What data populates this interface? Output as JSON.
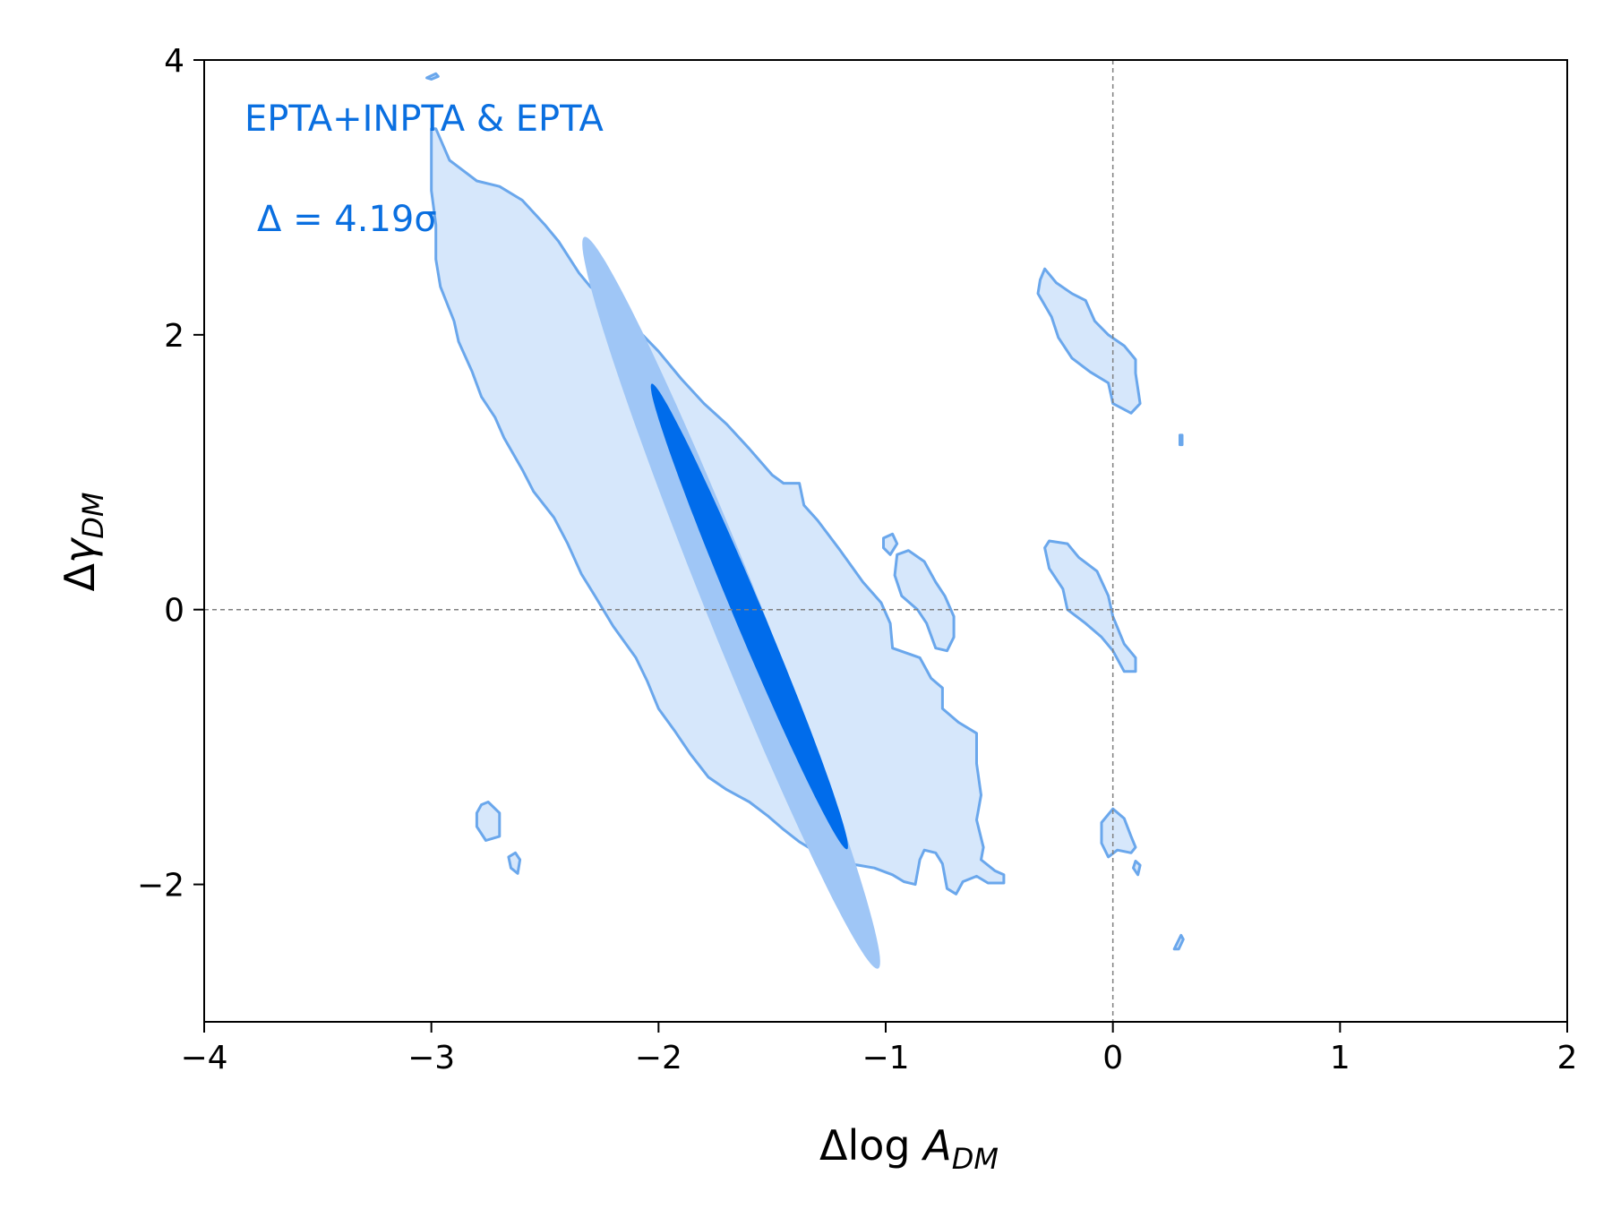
{
  "chart_data": {
    "type": "contour",
    "title": "",
    "xlabel": "Δlog A_DM",
    "ylabel": "Δγ_DM",
    "xlim": [
      -4,
      2
    ],
    "ylim": [
      -3,
      4
    ],
    "xticks": [
      -4,
      -3,
      -2,
      -1,
      0,
      1,
      2
    ],
    "yticks": [
      -2,
      0,
      2,
      4
    ],
    "xtick_labels": [
      "−4",
      "−3",
      "−2",
      "−1",
      "0",
      "1",
      "2"
    ],
    "ytick_labels": [
      "−2",
      "0",
      "2",
      "4"
    ],
    "reference_lines": {
      "x": 0,
      "y": 0,
      "style": "dashed",
      "color": "#808080"
    },
    "colors": {
      "level_outer": "#d6e7fb",
      "level_mid": "#9fc6f6",
      "level_inner": "#006ceb",
      "outline": "#6aa7ec",
      "annotation": "#0a6fe0"
    },
    "annotations": {
      "label": "EPTA+INPTA & EPTA",
      "sigma": "Δ = 4.19σ"
    },
    "regions": {
      "inner": {
        "center": [
          -1.6,
          -0.05
        ],
        "semi_major": 0.95,
        "semi_minor": 0.16,
        "angle_deg": -63
      },
      "middle": {
        "center": [
          -1.68,
          0.05
        ],
        "semi_major": 1.48,
        "semi_minor": 0.3,
        "angle_deg": -64
      },
      "outer_main": [
        [
          -2.98,
          3.5
        ],
        [
          -2.92,
          3.27
        ],
        [
          -2.8,
          3.12
        ],
        [
          -2.7,
          3.08
        ],
        [
          -2.6,
          2.98
        ],
        [
          -2.5,
          2.8
        ],
        [
          -2.44,
          2.68
        ],
        [
          -2.35,
          2.45
        ],
        [
          -2.3,
          2.35
        ],
        [
          -2.22,
          2.25
        ],
        [
          -2.1,
          2.05
        ],
        [
          -2.0,
          1.88
        ],
        [
          -1.9,
          1.68
        ],
        [
          -1.8,
          1.5
        ],
        [
          -1.7,
          1.35
        ],
        [
          -1.6,
          1.17
        ],
        [
          -1.5,
          0.98
        ],
        [
          -1.45,
          0.92
        ],
        [
          -1.38,
          0.92
        ],
        [
          -1.36,
          0.76
        ],
        [
          -1.3,
          0.65
        ],
        [
          -1.2,
          0.43
        ],
        [
          -1.1,
          0.2
        ],
        [
          -1.02,
          0.05
        ],
        [
          -0.98,
          -0.1
        ],
        [
          -0.97,
          -0.28
        ],
        [
          -0.85,
          -0.35
        ],
        [
          -0.8,
          -0.5
        ],
        [
          -0.75,
          -0.57
        ],
        [
          -0.75,
          -0.72
        ],
        [
          -0.68,
          -0.82
        ],
        [
          -0.6,
          -0.9
        ],
        [
          -0.6,
          -1.12
        ],
        [
          -0.58,
          -1.35
        ],
        [
          -0.6,
          -1.53
        ],
        [
          -0.57,
          -1.73
        ],
        [
          -0.58,
          -1.82
        ],
        [
          -0.52,
          -1.9
        ],
        [
          -0.48,
          -1.93
        ],
        [
          -0.48,
          -1.99
        ],
        [
          -0.55,
          -1.99
        ],
        [
          -0.6,
          -1.94
        ],
        [
          -0.66,
          -1.98
        ],
        [
          -0.69,
          -2.07
        ],
        [
          -0.73,
          -2.03
        ],
        [
          -0.75,
          -1.85
        ],
        [
          -0.78,
          -1.77
        ],
        [
          -0.83,
          -1.75
        ],
        [
          -0.85,
          -1.82
        ],
        [
          -0.87,
          -2.0
        ],
        [
          -0.92,
          -1.98
        ],
        [
          -0.97,
          -1.93
        ],
        [
          -1.05,
          -1.88
        ],
        [
          -1.12,
          -1.86
        ],
        [
          -1.2,
          -1.84
        ],
        [
          -1.3,
          -1.77
        ],
        [
          -1.38,
          -1.69
        ],
        [
          -1.45,
          -1.6
        ],
        [
          -1.52,
          -1.5
        ],
        [
          -1.6,
          -1.4
        ],
        [
          -1.7,
          -1.31
        ],
        [
          -1.78,
          -1.22
        ],
        [
          -1.86,
          -1.05
        ],
        [
          -1.93,
          -0.88
        ],
        [
          -2.0,
          -0.72
        ],
        [
          -2.05,
          -0.52
        ],
        [
          -2.1,
          -0.35
        ],
        [
          -2.2,
          -0.12
        ],
        [
          -2.28,
          0.1
        ],
        [
          -2.34,
          0.26
        ],
        [
          -2.4,
          0.48
        ],
        [
          -2.46,
          0.67
        ],
        [
          -2.55,
          0.86
        ],
        [
          -2.6,
          1.02
        ],
        [
          -2.68,
          1.25
        ],
        [
          -2.72,
          1.4
        ],
        [
          -2.78,
          1.55
        ],
        [
          -2.82,
          1.73
        ],
        [
          -2.88,
          1.95
        ],
        [
          -2.9,
          2.1
        ],
        [
          -2.96,
          2.35
        ],
        [
          -2.98,
          2.55
        ],
        [
          -2.98,
          2.8
        ],
        [
          -3.0,
          3.05
        ],
        [
          -3.0,
          3.5
        ]
      ],
      "islands": [
        [
          [
            -0.32,
            2.4
          ],
          [
            -0.3,
            2.48
          ],
          [
            -0.25,
            2.38
          ],
          [
            -0.18,
            2.3
          ],
          [
            -0.12,
            2.25
          ],
          [
            -0.08,
            2.1
          ],
          [
            -0.02,
            2.0
          ],
          [
            0.05,
            1.92
          ],
          [
            0.1,
            1.82
          ],
          [
            0.1,
            1.72
          ],
          [
            0.12,
            1.5
          ],
          [
            0.08,
            1.43
          ],
          [
            0.0,
            1.5
          ],
          [
            -0.02,
            1.65
          ],
          [
            -0.1,
            1.73
          ],
          [
            -0.18,
            1.83
          ],
          [
            -0.24,
            1.98
          ],
          [
            -0.27,
            2.13
          ],
          [
            -0.33,
            2.3
          ]
        ],
        [
          [
            -0.3,
            0.45
          ],
          [
            -0.28,
            0.5
          ],
          [
            -0.2,
            0.48
          ],
          [
            -0.15,
            0.38
          ],
          [
            -0.07,
            0.28
          ],
          [
            -0.02,
            0.1
          ],
          [
            0.0,
            -0.05
          ],
          [
            0.05,
            -0.25
          ],
          [
            0.1,
            -0.35
          ],
          [
            0.1,
            -0.45
          ],
          [
            0.05,
            -0.45
          ],
          [
            0.0,
            -0.3
          ],
          [
            -0.05,
            -0.2
          ],
          [
            -0.12,
            -0.1
          ],
          [
            -0.2,
            0.0
          ],
          [
            -0.22,
            0.15
          ],
          [
            -0.28,
            0.3
          ]
        ],
        [
          [
            -0.95,
            0.4
          ],
          [
            -0.9,
            0.43
          ],
          [
            -0.83,
            0.35
          ],
          [
            -0.78,
            0.2
          ],
          [
            -0.74,
            0.1
          ],
          [
            -0.7,
            -0.05
          ],
          [
            -0.7,
            -0.2
          ],
          [
            -0.73,
            -0.3
          ],
          [
            -0.78,
            -0.28
          ],
          [
            -0.82,
            -0.1
          ],
          [
            -0.86,
            0.0
          ],
          [
            -0.93,
            0.1
          ],
          [
            -0.96,
            0.25
          ]
        ],
        [
          [
            -1.01,
            0.52
          ],
          [
            -0.97,
            0.55
          ],
          [
            -0.95,
            0.48
          ],
          [
            -0.98,
            0.4
          ],
          [
            -1.01,
            0.45
          ]
        ],
        [
          [
            -2.78,
            -1.42
          ],
          [
            -2.75,
            -1.4
          ],
          [
            -2.7,
            -1.48
          ],
          [
            -2.7,
            -1.65
          ],
          [
            -2.76,
            -1.68
          ],
          [
            -2.8,
            -1.58
          ],
          [
            -2.8,
            -1.48
          ]
        ],
        [
          [
            -2.63,
            -1.77
          ],
          [
            -2.61,
            -1.82
          ],
          [
            -2.62,
            -1.92
          ],
          [
            -2.65,
            -1.88
          ],
          [
            -2.66,
            -1.8
          ]
        ],
        [
          [
            -0.05,
            -1.55
          ],
          [
            0.0,
            -1.45
          ],
          [
            0.05,
            -1.52
          ],
          [
            0.08,
            -1.65
          ],
          [
            0.1,
            -1.73
          ],
          [
            0.08,
            -1.77
          ],
          [
            0.02,
            -1.75
          ],
          [
            -0.02,
            -1.8
          ],
          [
            -0.05,
            -1.7
          ]
        ],
        [
          [
            0.1,
            -1.83
          ],
          [
            0.12,
            -1.86
          ],
          [
            0.11,
            -1.93
          ],
          [
            0.09,
            -1.88
          ]
        ],
        [
          [
            0.295,
            1.27
          ],
          [
            0.305,
            1.27
          ],
          [
            0.305,
            1.2
          ],
          [
            0.295,
            1.2
          ]
        ],
        [
          [
            0.27,
            -2.47
          ],
          [
            0.3,
            -2.37
          ],
          [
            0.31,
            -2.4
          ],
          [
            0.29,
            -2.47
          ]
        ],
        [
          [
            -3.02,
            3.87
          ],
          [
            -2.98,
            3.9
          ],
          [
            -2.97,
            3.88
          ],
          [
            -3.0,
            3.86
          ]
        ]
      ]
    }
  }
}
